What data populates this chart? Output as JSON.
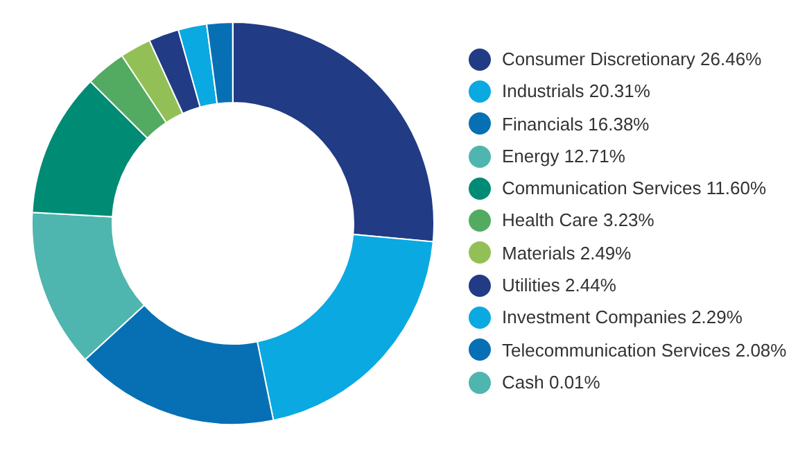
{
  "chart_data": {
    "type": "donut",
    "categories": [
      "Consumer Discretionary",
      "Industrials",
      "Financials",
      "Energy",
      "Communication Services",
      "Health Care",
      "Materials",
      "Utilities",
      "Investment Companies",
      "Telecommunication Services",
      "Cash"
    ],
    "values": [
      26.46,
      20.31,
      16.38,
      12.71,
      11.6,
      3.23,
      2.49,
      2.44,
      2.29,
      2.08,
      0.01
    ],
    "value_labels": [
      "26.46%",
      "20.31%",
      "16.38%",
      "12.71%",
      "11.60%",
      "3.23%",
      "2.49%",
      "2.44%",
      "2.29%",
      "2.08%",
      "0.01%"
    ],
    "colors": [
      "#213b85",
      "#0aa9e1",
      "#0770b4",
      "#4eb6ae",
      "#008b74",
      "#52ab61",
      "#93c056",
      "#213b85",
      "#0aa9e1",
      "#0770b4",
      "#4eb6ae"
    ],
    "legend": "right"
  }
}
